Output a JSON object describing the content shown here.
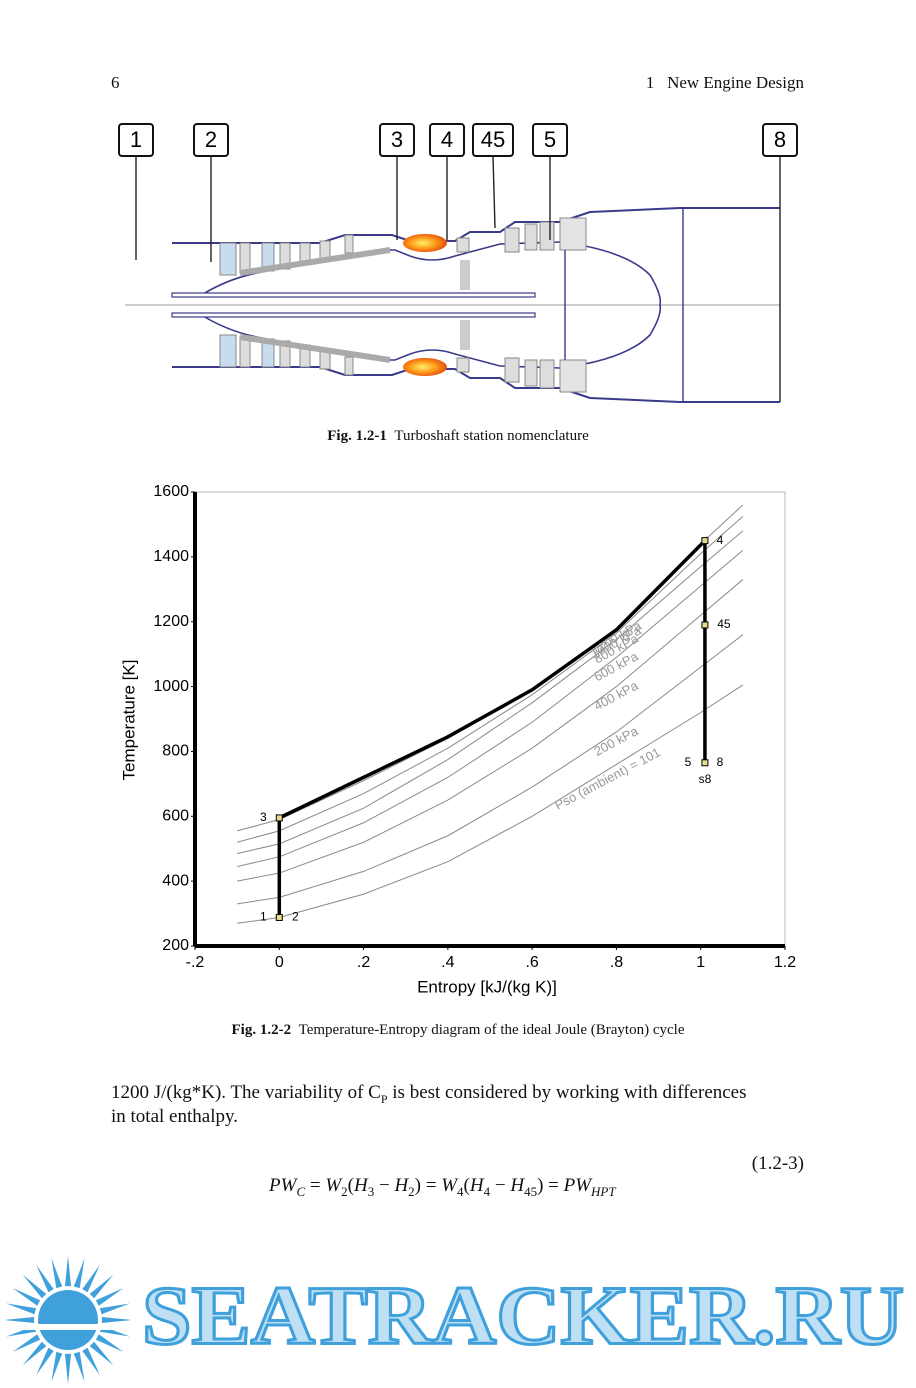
{
  "header": {
    "page_number": "6",
    "chapter": "1   New Engine Design"
  },
  "figure1": {
    "stations": [
      "1",
      "2",
      "3",
      "4",
      "45",
      "5",
      "8"
    ],
    "caption_label": "Fig. 1.2-1",
    "caption_text": "Turboshaft station nomenclature"
  },
  "chart_data": {
    "type": "line",
    "x_label": "Entropy [kJ/(kg K)]",
    "y_label": "Temperature [K]",
    "xlim": [
      -0.2,
      1.2
    ],
    "xticks": [
      {
        "value": -0.2,
        "label": "-.2"
      },
      0,
      {
        "value": 0.2,
        "label": ".2"
      },
      {
        "value": 0.4,
        "label": ".4"
      },
      {
        "value": 0.6,
        "label": ".6"
      },
      {
        "value": 0.8,
        "label": ".8"
      },
      1,
      1.2
    ],
    "ylim": [
      200,
      1600
    ],
    "yticks": [
      200,
      400,
      600,
      800,
      1000,
      1200,
      1400,
      1600
    ],
    "cycle": {
      "color": "#000000",
      "x": [
        0,
        0,
        0.2,
        0.4,
        0.6,
        0.8,
        1.01,
        1.01,
        1.01
      ],
      "values": [
        288,
        595,
        720,
        845,
        990,
        1175,
        1450,
        1190,
        765
      ]
    },
    "isobars": [
      {
        "label": "Pso (ambient) = 101",
        "color": "#8a8a8a",
        "x": [
          -0.1,
          0,
          0.2,
          0.4,
          0.6,
          0.8,
          1.0,
          1.1
        ],
        "values": [
          270,
          288,
          360,
          460,
          600,
          760,
          920,
          1005
        ]
      },
      {
        "label": "200 kPa",
        "color": "#8a8a8a",
        "x": [
          -0.1,
          0,
          0.2,
          0.4,
          0.6,
          0.8,
          1.0,
          1.1
        ],
        "values": [
          330,
          350,
          430,
          540,
          690,
          860,
          1060,
          1160
        ]
      },
      {
        "label": "400 kPa",
        "color": "#8a8a8a",
        "x": [
          -0.1,
          0,
          0.2,
          0.4,
          0.6,
          0.8,
          1.0,
          1.1
        ],
        "values": [
          400,
          425,
          520,
          650,
          810,
          1000,
          1220,
          1330
        ]
      },
      {
        "label": "600 kPa",
        "color": "#8a8a8a",
        "x": [
          -0.1,
          0,
          0.2,
          0.4,
          0.6,
          0.8,
          1.0,
          1.1
        ],
        "values": [
          445,
          475,
          580,
          720,
          890,
          1090,
          1310,
          1420
        ]
      },
      {
        "label": "800 kPa",
        "color": "#8a8a8a",
        "x": [
          -0.1,
          0,
          0.2,
          0.4,
          0.6,
          0.8,
          1.0,
          1.1
        ],
        "values": [
          485,
          515,
          625,
          775,
          950,
          1145,
          1370,
          1480
        ]
      },
      {
        "label": "1000 kPa",
        "color": "#8a8a8a",
        "x": [
          -0.1,
          0,
          0.2,
          0.4,
          0.6,
          0.8,
          1.0,
          1.1
        ],
        "values": [
          520,
          555,
          670,
          810,
          975,
          1165,
          1410,
          1525
        ]
      },
      {
        "label": "1200 kPa",
        "color": "#8a8a8a",
        "x": [
          -0.1,
          0,
          0.2,
          0.4,
          0.6,
          0.8,
          1.0,
          1.1
        ],
        "values": [
          555,
          590,
          710,
          840,
          990,
          1180,
          1440,
          1560
        ]
      }
    ],
    "points": [
      {
        "x": 0,
        "y": 288,
        "labels": [
          "1",
          "2"
        ]
      },
      {
        "x": 0,
        "y": 595,
        "labels": [
          "3"
        ]
      },
      {
        "x": 1.01,
        "y": 1450,
        "labels": [
          "4"
        ]
      },
      {
        "x": 1.01,
        "y": 1190,
        "labels": [
          "45"
        ]
      },
      {
        "x": 1.01,
        "y": 765,
        "labels": [
          "5",
          "8",
          "s8"
        ]
      }
    ]
  },
  "figure2": {
    "caption_label": "Fig. 1.2-2",
    "caption_text": "Temperature-Entropy diagram of the ideal Joule (Brayton) cycle"
  },
  "body": {
    "line1_parts": [
      "1200 J/(kg*K). The variability of C",
      "P",
      " is best considered by working with differences"
    ],
    "line2": "in total enthalpy."
  },
  "equation": {
    "parts": [
      "PW",
      "C",
      " = ",
      "W",
      "2",
      "(",
      "H",
      "3",
      " − ",
      "H",
      "2",
      ") = ",
      "W",
      "4",
      "(",
      "H",
      "4",
      " − ",
      "H",
      "45",
      ") = ",
      "PW",
      "HPT"
    ],
    "number": "(1.2-3)"
  },
  "watermark": "SEATRACKER.RU"
}
